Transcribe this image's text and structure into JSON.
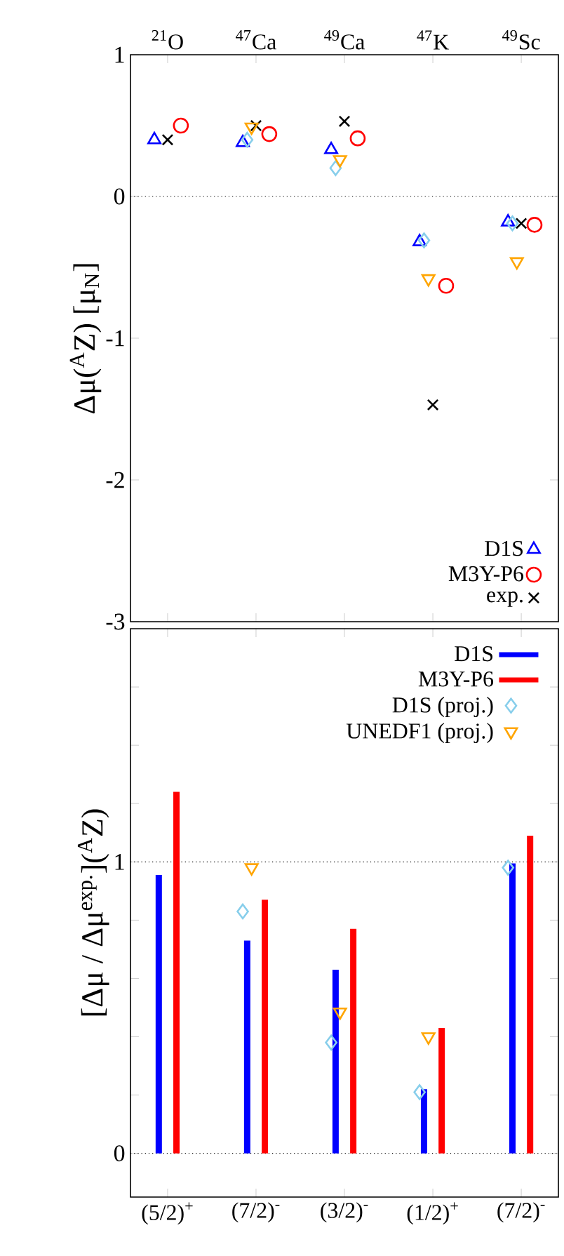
{
  "chart_data": [
    {
      "type": "scatter",
      "ylabel": "Δμ($^{A}$Z) [μ$_{N}$]",
      "categories": [
        "$^{21}$O",
        "$^{47}$Ca",
        "$^{49}$Ca",
        "$^{47}$K",
        "$^{49}$Sc"
      ],
      "ylim": [
        -3,
        1
      ],
      "yticks": [
        -3,
        -2,
        -1,
        0,
        1
      ],
      "legend": "bottom right",
      "series": [
        {
          "name": "D1S",
          "color": "#0000ff",
          "marker": "triangle",
          "values": [
            0.4,
            0.38,
            0.33,
            -0.32,
            -0.18
          ]
        },
        {
          "name": "M3Y-P6",
          "color": "#ff0000",
          "marker": "circle",
          "values": [
            0.5,
            0.44,
            0.41,
            -0.63,
            -0.2
          ]
        },
        {
          "name": "exp.",
          "color": "#000000",
          "marker": "cross",
          "values": [
            0.4,
            0.5,
            0.53,
            -1.47,
            -0.19
          ]
        },
        {
          "color": "#87ceeb",
          "marker": "diamond",
          "values": [
            null,
            0.4,
            0.2,
            -0.31,
            -0.19
          ]
        },
        {
          "color": "#ffa500",
          "marker": "triangle-down",
          "values": [
            null,
            0.49,
            0.26,
            -0.58,
            -0.46
          ]
        }
      ],
      "ref_lines": [
        {
          "axis": "y",
          "value": 0,
          "color": "#000000",
          "line_style": "dotted"
        }
      ]
    },
    {
      "type": "bar",
      "ylabel": "[Δμ / Δμ$^{exp.}$]($^{A}$Z)",
      "categories": [
        "(5/2)$^{+}$",
        "(7/2)$^{-}$",
        "(3/2)$^{-}$",
        "(1/2)$^{+}$",
        "(7/2)$^{-}$"
      ],
      "ylim": [
        -0.15,
        1.8
      ],
      "yticks": [
        0,
        {
          "value": 0.2,
          "label": null
        },
        {
          "value": 0.4,
          "label": null
        },
        {
          "value": 0.6,
          "label": null
        },
        {
          "value": 0.8,
          "label": null
        },
        1,
        {
          "value": 1.2,
          "label": null
        },
        {
          "value": 1.4,
          "label": null
        },
        {
          "value": 1.6,
          "label": null
        }
      ],
      "legend": "top right",
      "series": [
        {
          "name": "D1S",
          "color": "#0000ff",
          "values": [
            0.955,
            0.73,
            0.63,
            0.22,
            0.995
          ]
        },
        {
          "name": "M3Y-P6",
          "color": "#ff0000",
          "values": [
            1.24,
            0.87,
            0.77,
            0.43,
            1.09
          ]
        },
        {
          "name": "D1S (proj.)",
          "type": "scatter",
          "color": "#87ceeb",
          "marker": "diamond",
          "values": [
            null,
            0.83,
            0.38,
            0.21,
            0.98
          ]
        },
        {
          "name": "UNEDF1 (proj.)",
          "type": "scatter",
          "color": "#ffa500",
          "marker": "triangle-down",
          "values": [
            null,
            0.98,
            0.485,
            0.4,
            null
          ]
        }
      ],
      "ref_lines": [
        {
          "axis": "y",
          "value": 0,
          "color": "#000000",
          "line_style": "dotted"
        },
        {
          "axis": "y",
          "value": 1,
          "color": "#000000",
          "line_style": "dotted"
        }
      ]
    }
  ]
}
